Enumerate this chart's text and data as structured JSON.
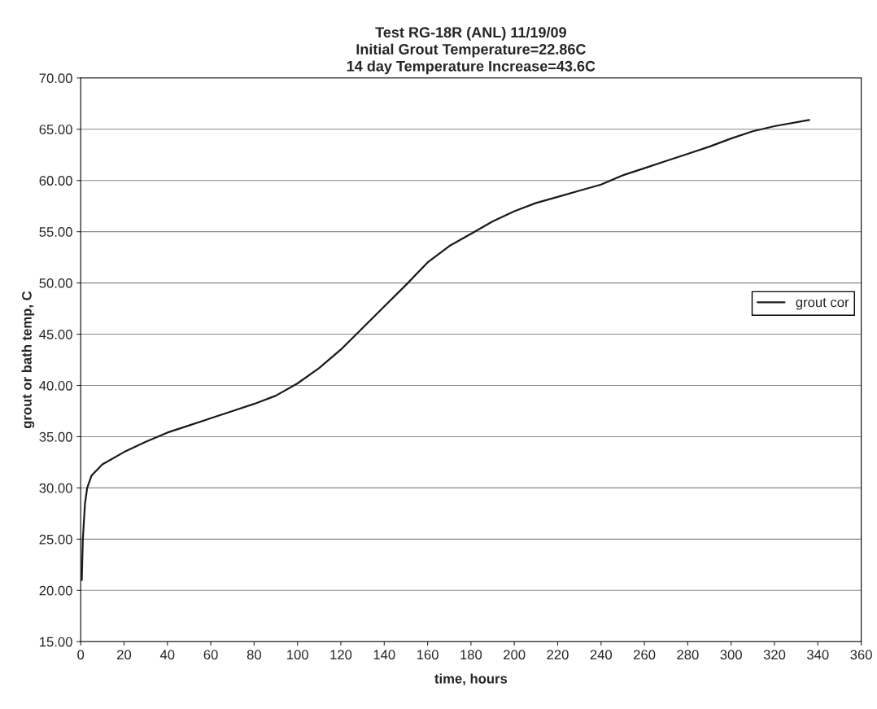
{
  "chart_data": {
    "type": "line",
    "title": "Test RG-18R (ANL) 11/19/09\nInitial Grout Temperature=22.86C\n14 day Temperature Increase=43.6C",
    "xlabel": "time, hours",
    "ylabel": "grout or bath temp, C",
    "series": [
      {
        "name": "grout cor",
        "color": "#1a1a1a",
        "x": [
          0.5,
          1,
          2,
          3,
          5,
          10,
          20,
          30,
          40,
          50,
          60,
          70,
          80,
          90,
          100,
          110,
          120,
          130,
          140,
          150,
          160,
          170,
          180,
          190,
          200,
          210,
          220,
          230,
          240,
          250,
          260,
          270,
          280,
          290,
          300,
          310,
          320,
          336
        ],
        "values": [
          21,
          25,
          28.5,
          30,
          31.2,
          32.3,
          33.5,
          34.5,
          35.4,
          36.1,
          36.8,
          37.5,
          38.2,
          39,
          40.2,
          41.7,
          43.5,
          45.6,
          47.7,
          49.8,
          52,
          53.6,
          54.8,
          56.0,
          57.0,
          57.8,
          58.4,
          59.0,
          59.6,
          60.5,
          61.2,
          61.9,
          62.6,
          63.3,
          64.1,
          64.8,
          65.3,
          65.9
        ]
      }
    ],
    "xlim": [
      0,
      360
    ],
    "xticks": [
      0,
      20,
      40,
      60,
      80,
      100,
      120,
      140,
      160,
      180,
      200,
      220,
      240,
      260,
      280,
      300,
      320,
      340,
      360
    ],
    "ylim": [
      15,
      70
    ],
    "yticks": [
      {
        "value": 15,
        "label": "15.00"
      },
      {
        "value": 20,
        "label": "20.00"
      },
      {
        "value": 25,
        "label": "25.00"
      },
      {
        "value": 30,
        "label": "30.00"
      },
      {
        "value": 35,
        "label": "35.00"
      },
      {
        "value": 40,
        "label": "40.00"
      },
      {
        "value": 45,
        "label": "45.00"
      },
      {
        "value": 50,
        "label": "50.00"
      },
      {
        "value": 55,
        "label": "55.00"
      },
      {
        "value": 60,
        "label": "60.00"
      },
      {
        "value": 65,
        "label": "65.00"
      },
      {
        "value": 70,
        "label": "70.00"
      }
    ],
    "grid": "y",
    "legend": "right",
    "marker": "none",
    "line_style": "solid"
  }
}
